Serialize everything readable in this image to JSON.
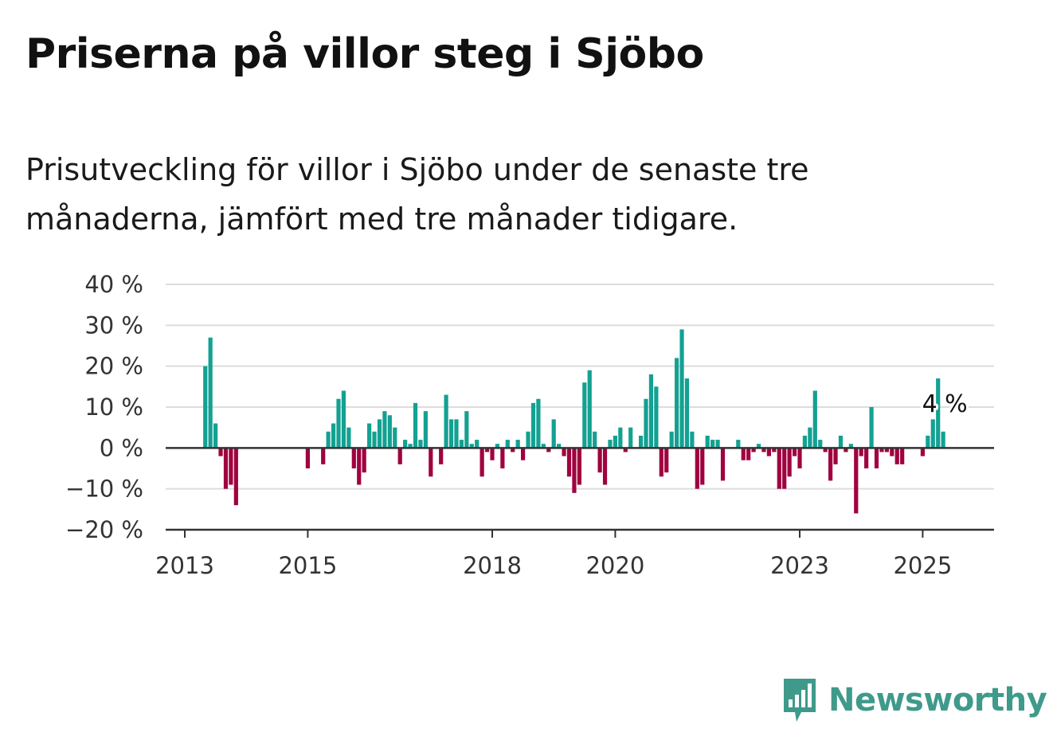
{
  "title": "Priserna på villor steg i Sjöbo",
  "subtitle": "Prisutveckling för villor i Sjöbo under de senaste tre månaderna, jämfört med tre månader tidigare.",
  "brand": {
    "name": "Newsworthy",
    "icon": "newsworthy-logo-icon",
    "color": "#3f9a8b"
  },
  "colors": {
    "positive": "#13a192",
    "negative": "#a0023f",
    "grid": "#dddddd",
    "axis": "#333333"
  },
  "chart_data": {
    "type": "bar",
    "title": "Priserna på villor steg i Sjöbo",
    "subtitle": "Prisutveckling för villor i Sjöbo under de senaste tre månaderna, jämfört med tre månader tidigare.",
    "xlabel": "",
    "ylabel": "",
    "unit": "%",
    "ylim": [
      -20,
      40
    ],
    "y_ticks": [
      40,
      30,
      20,
      10,
      0,
      -10,
      -20
    ],
    "y_tick_labels": [
      "40 %",
      "30 %",
      "20 %",
      "10 %",
      "0 %",
      "−10 %",
      "−20 %"
    ],
    "x_ticks": [
      2013,
      2015,
      2018,
      2020,
      2023,
      2025
    ],
    "grid": true,
    "x_start": "2013-01",
    "x_end": "2025-09",
    "monthly_values": {
      "2013": [
        null,
        null,
        null,
        null,
        20,
        27,
        6,
        -2,
        -10,
        -9,
        -14,
        null
      ],
      "2014": [
        null,
        null,
        null,
        null,
        null,
        null,
        null,
        null,
        null,
        null,
        null,
        null
      ],
      "2015": [
        -5,
        null,
        null,
        -4,
        4,
        6,
        12,
        14,
        5,
        -5,
        -9,
        -6
      ],
      "2016": [
        6,
        4,
        7,
        9,
        8,
        5,
        -4,
        2,
        1,
        11,
        2,
        9
      ],
      "2017": [
        -7,
        0,
        -4,
        13,
        7,
        7,
        2,
        9,
        1,
        2,
        -7,
        -1
      ],
      "2018": [
        -3,
        1,
        -5,
        2,
        -1,
        2,
        -3,
        4,
        11,
        12,
        1,
        -1
      ],
      "2019": [
        7,
        1,
        -2,
        -7,
        -11,
        -9,
        16,
        19,
        4,
        -6,
        -9,
        2
      ],
      "2020": [
        3,
        5,
        -1,
        5,
        0,
        3,
        12,
        18,
        15,
        -7,
        -6,
        4
      ],
      "2021": [
        22,
        29,
        17,
        4,
        -10,
        -9,
        3,
        2,
        2,
        -8,
        null,
        0
      ],
      "2022": [
        2,
        -3,
        -3,
        -1,
        1,
        -1,
        -2,
        -1,
        -10,
        -10,
        -7,
        -2
      ],
      "2023": [
        -5,
        3,
        5,
        14,
        2,
        -1,
        -8,
        -4,
        3,
        -1,
        1,
        -16
      ],
      "2024": [
        -2,
        -5,
        10,
        -5,
        -1,
        -1,
        -2,
        -4,
        -4,
        null,
        null,
        null
      ],
      "2025": [
        -2,
        3,
        7,
        17,
        4,
        null,
        null,
        null,
        null
      ]
    },
    "highlight": {
      "period": "2025-05",
      "value": 4,
      "label": "4 %"
    }
  }
}
